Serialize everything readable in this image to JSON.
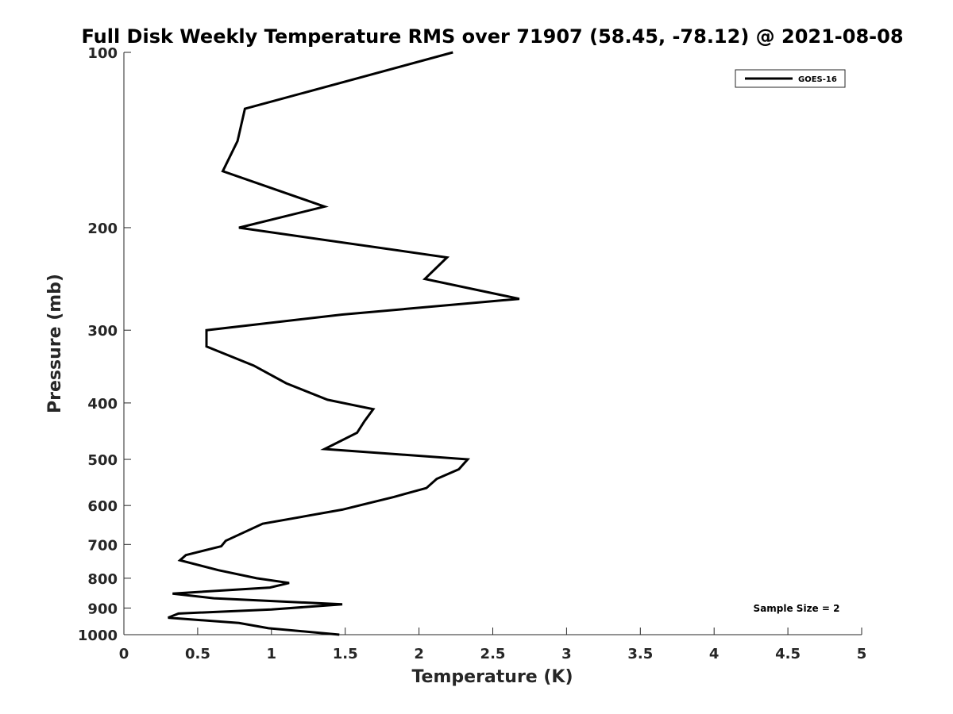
{
  "chart_data": {
    "type": "line",
    "title": "Full Disk Weekly Temperature RMS over 71907 (58.45, -78.12) @ 2021-08-08",
    "xlabel": "Temperature (K)",
    "ylabel": "Pressure (mb)",
    "xlim": [
      0,
      5
    ],
    "ylim": [
      100,
      1000
    ],
    "y_scale": "log",
    "y_reversed": true,
    "x_ticks": [
      "0",
      "0.5",
      "1",
      "1.5",
      "2",
      "2.5",
      "3",
      "3.5",
      "4",
      "4.5",
      "5"
    ],
    "y_ticks": [
      "100",
      "200",
      "300",
      "400",
      "500",
      "600",
      "700",
      "800",
      "900",
      "1000"
    ],
    "grid": false,
    "legend_position": "top-right",
    "series": [
      {
        "name": "GOES-16",
        "color": "#000000",
        "points": [
          [
            2.23,
            100
          ],
          [
            0.82,
            125
          ],
          [
            0.77,
            142
          ],
          [
            0.67,
            160
          ],
          [
            1.36,
            184
          ],
          [
            0.78,
            200
          ],
          [
            2.19,
            225
          ],
          [
            2.04,
            245
          ],
          [
            2.68,
            265
          ],
          [
            1.48,
            282
          ],
          [
            0.56,
            300
          ],
          [
            0.56,
            320
          ],
          [
            0.88,
            345
          ],
          [
            1.1,
            370
          ],
          [
            1.38,
            395
          ],
          [
            1.69,
            410
          ],
          [
            1.63,
            430
          ],
          [
            1.58,
            450
          ],
          [
            1.36,
            480
          ],
          [
            2.33,
            500
          ],
          [
            2.27,
            520
          ],
          [
            2.12,
            540
          ],
          [
            2.05,
            560
          ],
          [
            1.83,
            580
          ],
          [
            1.48,
            610
          ],
          [
            0.94,
            645
          ],
          [
            0.69,
            690
          ],
          [
            0.66,
            705
          ],
          [
            0.42,
            730
          ],
          [
            0.38,
            745
          ],
          [
            0.64,
            775
          ],
          [
            0.9,
            800
          ],
          [
            1.12,
            815
          ],
          [
            0.99,
            830
          ],
          [
            0.33,
            850
          ],
          [
            0.61,
            866
          ],
          [
            1.48,
            887
          ],
          [
            1.0,
            905
          ],
          [
            0.37,
            920
          ],
          [
            0.3,
            935
          ],
          [
            0.78,
            955
          ],
          [
            0.98,
            975
          ],
          [
            1.46,
            1000
          ]
        ]
      }
    ],
    "annotation": "Sample Size = 2"
  }
}
